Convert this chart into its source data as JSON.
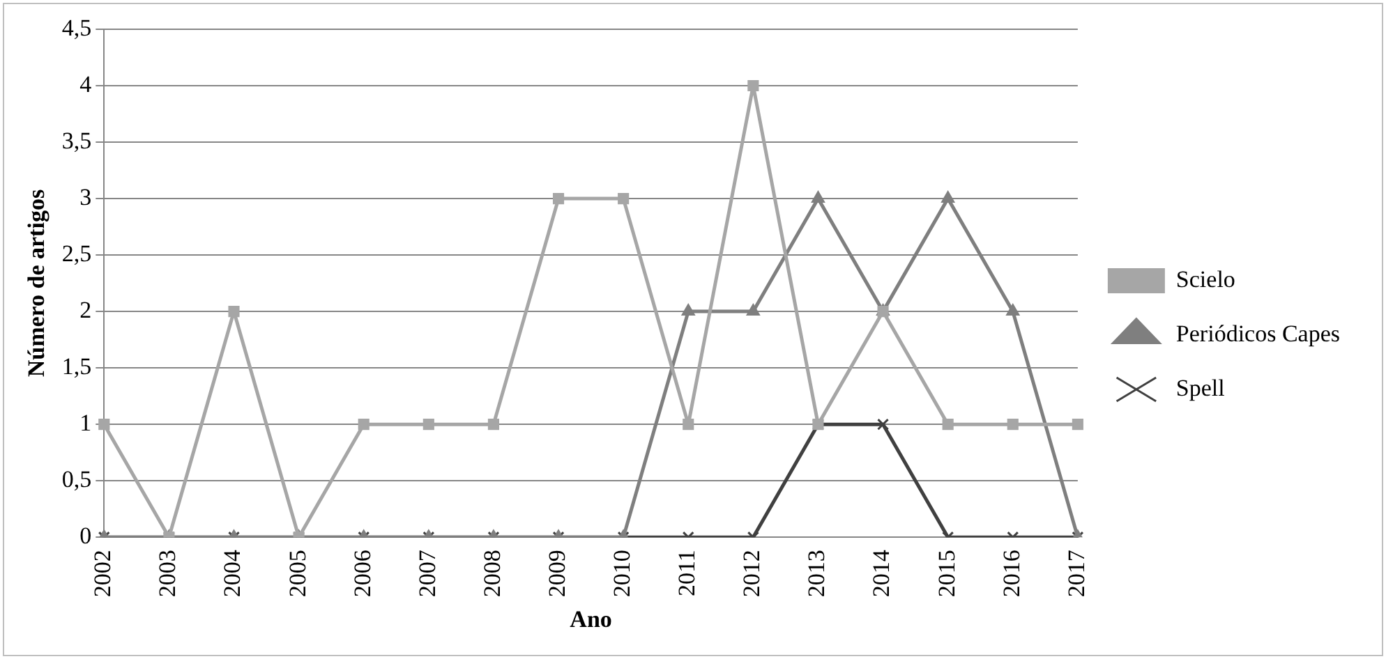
{
  "chart_data": {
    "type": "line",
    "xlabel": "Ano",
    "ylabel": "Número de artigos",
    "categories": [
      "2002",
      "2003",
      "2004",
      "2005",
      "2006",
      "2007",
      "2008",
      "2009",
      "2010",
      "2011",
      "2012",
      "2013",
      "2014",
      "2015",
      "2016",
      "2017"
    ],
    "series": [
      {
        "name": "Scielo",
        "color": "#a6a6a6",
        "marker": "square",
        "values": [
          1,
          0,
          2,
          0,
          1,
          1,
          1,
          3,
          3,
          1,
          4,
          1,
          2,
          1,
          1,
          1
        ]
      },
      {
        "name": "Periódicos Capes",
        "color": "#7f7f7f",
        "marker": "triangle",
        "values": [
          0,
          0,
          0,
          0,
          0,
          0,
          0,
          0,
          0,
          2,
          2,
          3,
          2,
          3,
          2,
          0
        ]
      },
      {
        "name": "Spell",
        "color": "#404040",
        "marker": "cross",
        "values": [
          0,
          0,
          0,
          0,
          0,
          0,
          0,
          0,
          0,
          0,
          0,
          1,
          1,
          0,
          0,
          0
        ]
      }
    ],
    "ylim": [
      0,
      4.5
    ],
    "yticks": [
      0,
      {
        "value": 0.5,
        "label": "0,5"
      },
      1,
      {
        "value": 1.5,
        "label": "1,5"
      },
      2,
      {
        "value": 2.5,
        "label": "2,5"
      },
      3,
      {
        "value": 3.5,
        "label": "3,5"
      },
      4,
      {
        "value": 4.5,
        "label": "4,5"
      }
    ],
    "grid": "y",
    "legend": "right",
    "line_style": "solid"
  }
}
